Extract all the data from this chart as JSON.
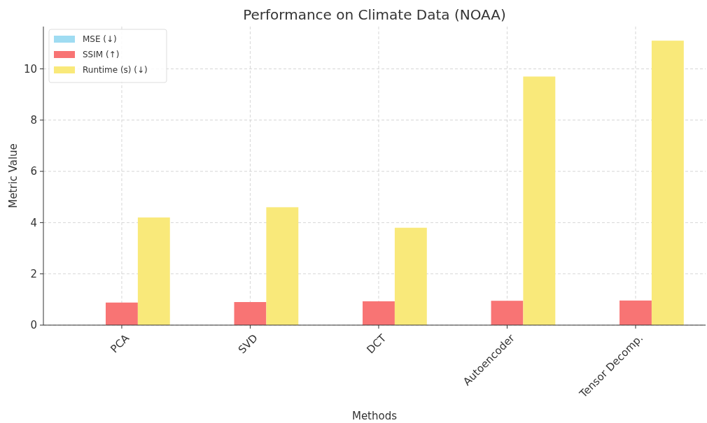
{
  "chart_data": {
    "type": "bar",
    "title": "Performance on Climate Data (NOAA)",
    "xlabel": "Methods",
    "ylabel": "Metric Value",
    "categories": [
      "PCA",
      "SVD",
      "DCT",
      "Autoencoder",
      "Tensor Decomp."
    ],
    "series": [
      {
        "name": "MSE (↓)",
        "color": "#9fdcf2",
        "values": [
          null,
          null,
          null,
          null,
          null
        ]
      },
      {
        "name": "SSIM (↑)",
        "color": "#f87474",
        "values": [
          0.88,
          0.9,
          0.93,
          0.95,
          0.96
        ]
      },
      {
        "name": "Runtime (s) (↓)",
        "color": "#f9e97a",
        "values": [
          4.2,
          4.6,
          3.8,
          9.7,
          11.1
        ]
      }
    ],
    "ylim": [
      0,
      11.65
    ],
    "yticks": [
      0,
      2,
      4,
      6,
      8,
      10
    ],
    "grid": true,
    "legend": "top left"
  }
}
